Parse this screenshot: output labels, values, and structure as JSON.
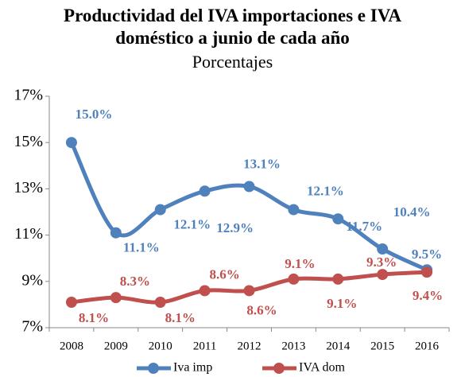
{
  "chart_data": {
    "type": "line",
    "title": "Productividad del IVA importaciones e IVA doméstico a junio de cada año",
    "subtitle": "Porcentajes",
    "categories": [
      "2008",
      "2009",
      "2010",
      "2011",
      "2012",
      "2013",
      "2014",
      "2015",
      "2016"
    ],
    "series": [
      {
        "name": "Iva imp",
        "color": "#4f81bd",
        "values": [
          15.0,
          11.1,
          12.1,
          12.9,
          13.1,
          12.1,
          11.7,
          10.4,
          9.5
        ],
        "value_labels": [
          "15.0%",
          "11.1%",
          "12.1%",
          "12.9%",
          "13.1%",
          "12.1%",
          "11.7%",
          "10.4%",
          "9.5%"
        ]
      },
      {
        "name": "IVA dom",
        "color": "#c0504d",
        "values": [
          8.1,
          8.3,
          8.1,
          8.6,
          8.6,
          9.1,
          9.1,
          9.3,
          9.4
        ],
        "value_labels": [
          "8.1%",
          "8.3%",
          "8.1%",
          "8.6%",
          "8.6%",
          "9.1%",
          "9.1%",
          "9.3%",
          "9.4%"
        ]
      }
    ],
    "ylim": [
      7,
      17
    ],
    "yticks": [
      {
        "value": 7,
        "label": "7%"
      },
      {
        "value": 9,
        "label": "9%"
      },
      {
        "value": 11,
        "label": "11%"
      },
      {
        "value": 13,
        "label": "13%"
      },
      {
        "value": 15,
        "label": "15%"
      },
      {
        "value": 17,
        "label": "17%"
      }
    ],
    "grid": false,
    "legend": "bottom"
  }
}
